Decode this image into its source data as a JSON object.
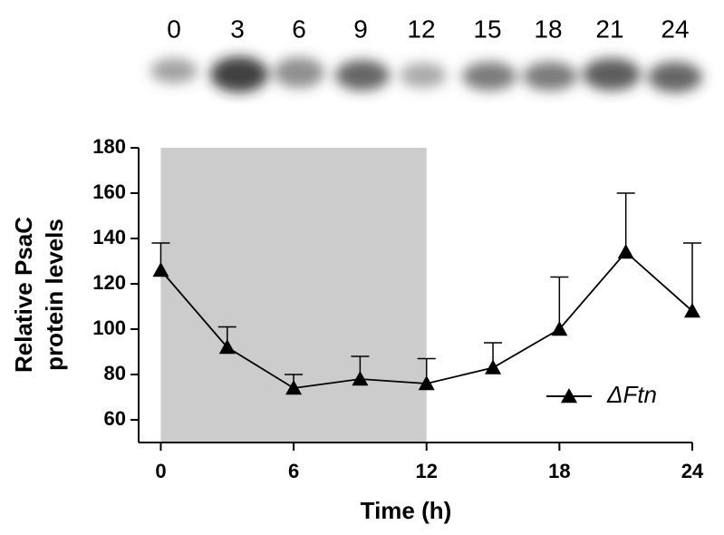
{
  "blot": {
    "lanes": [
      "0",
      "3",
      "6",
      "9",
      "12",
      "15",
      "18",
      "21",
      "24"
    ]
  },
  "chart_data": {
    "type": "line",
    "x": [
      0,
      3,
      6,
      9,
      12,
      15,
      18,
      21,
      24
    ],
    "series": [
      {
        "name": "ΔFtn",
        "color": "#000000",
        "values": [
          126,
          92,
          74,
          78,
          76,
          83,
          100,
          134,
          108
        ],
        "errors": [
          12,
          9,
          6,
          10,
          11,
          11,
          23,
          26,
          30
        ]
      }
    ],
    "xlabel": "Time (h)",
    "ylabel": [
      "Relative PsaC",
      "protein levels"
    ],
    "xlim": [
      -1,
      24
    ],
    "ylim": [
      50,
      180
    ],
    "xticks": [
      0,
      6,
      12,
      18,
      24
    ],
    "yticks": [
      60,
      80,
      100,
      120,
      140,
      160,
      180
    ],
    "shaded_x": [
      0,
      12
    ],
    "shade_color": "#cccccc",
    "legend": "lower right"
  }
}
